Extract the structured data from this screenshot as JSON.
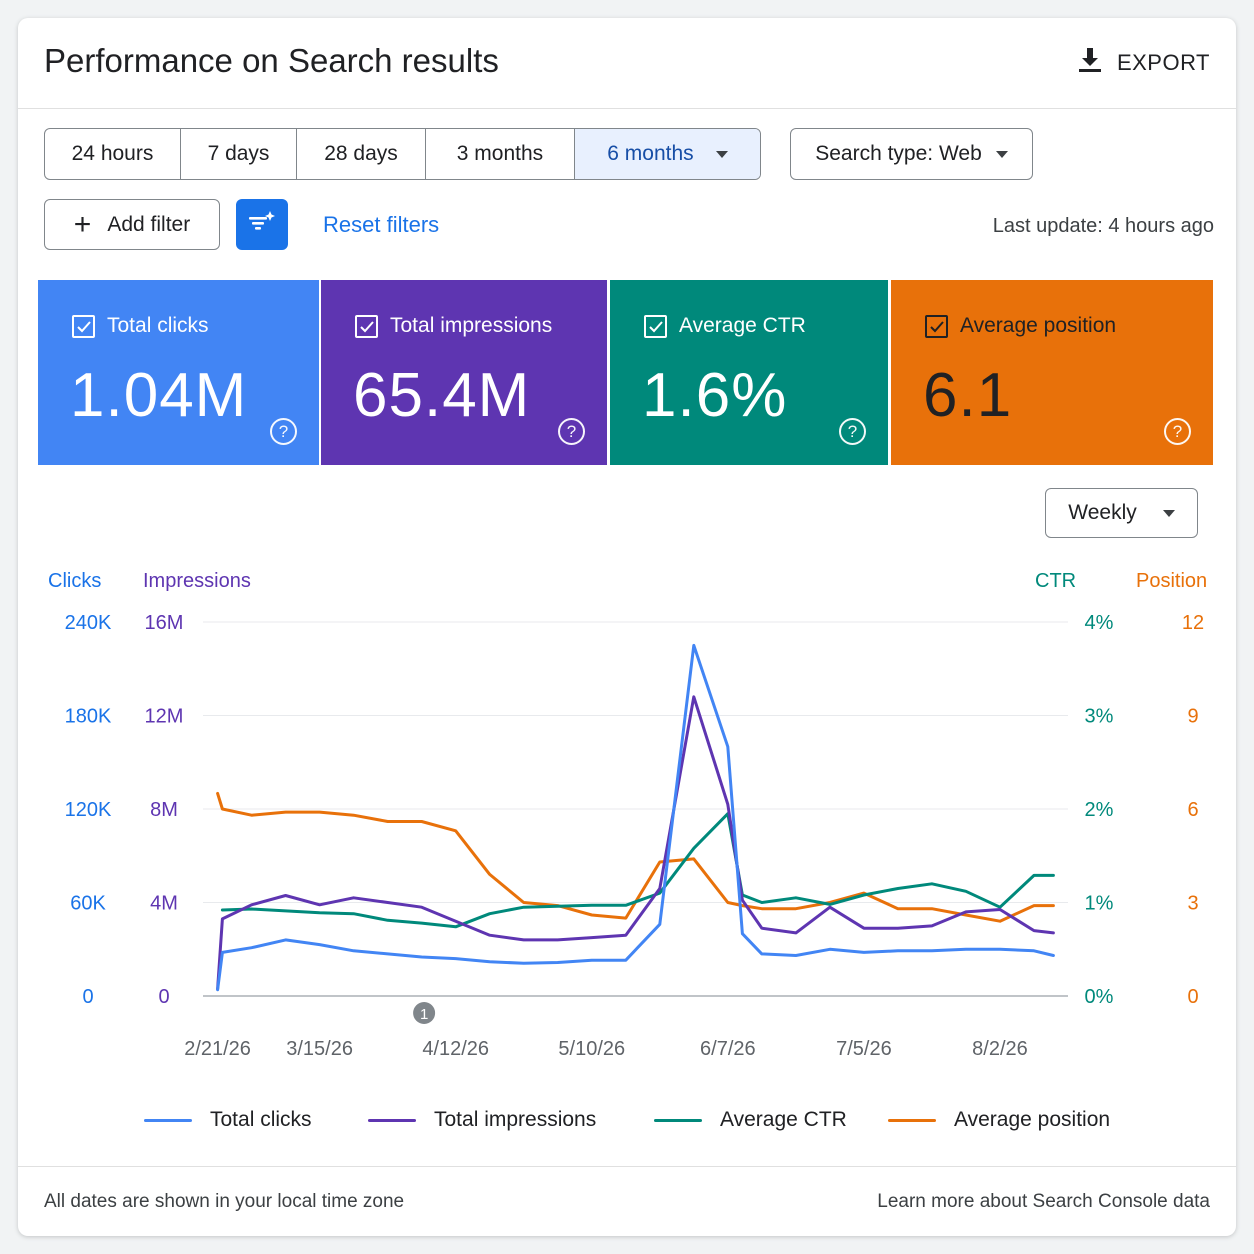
{
  "header": {
    "title": "Performance on Search results",
    "export_label": "EXPORT"
  },
  "date_ranges": [
    {
      "label": "24 hours",
      "selected": false
    },
    {
      "label": "7 days",
      "selected": false
    },
    {
      "label": "28 days",
      "selected": false
    },
    {
      "label": "3 months",
      "selected": false
    },
    {
      "label": "6 months",
      "selected": true
    }
  ],
  "search_type": "Search type: Web",
  "filters": {
    "add_filter_label": "Add filter",
    "reset_label": "Reset filters"
  },
  "last_update": "Last update: 4 hours ago",
  "metrics": [
    {
      "label": "Total clicks",
      "value": "1.04M",
      "checked": true,
      "color": "#4285f4"
    },
    {
      "label": "Total impressions",
      "value": "65.4M",
      "checked": true,
      "color": "#5e35b1"
    },
    {
      "label": "Average CTR",
      "value": "1.6%",
      "checked": true,
      "color": "#00897b"
    },
    {
      "label": "Average position",
      "value": "6.1",
      "checked": true,
      "color": "#e8710a"
    }
  ],
  "granularity": "Weekly",
  "chart_data": {
    "type": "line",
    "axes": {
      "left1": {
        "title": "Clicks",
        "ticks": [
          "0",
          "60K",
          "120K",
          "180K",
          "240K"
        ],
        "color": "#1a73e8"
      },
      "left2": {
        "title": "Impressions",
        "ticks": [
          "0",
          "4M",
          "8M",
          "12M",
          "16M"
        ],
        "color": "#5e35b1"
      },
      "right1": {
        "title": "CTR",
        "ticks": [
          "0%",
          "1%",
          "2%",
          "3%",
          "4%"
        ],
        "color": "#00897b"
      },
      "right2": {
        "title": "Position",
        "ticks": [
          "0",
          "3",
          "6",
          "9",
          "12"
        ],
        "color": "#e8710a"
      }
    },
    "x_labels": [
      "2/21/26",
      "3/15/26",
      "4/12/26",
      "5/10/26",
      "6/7/26",
      "7/5/26",
      "8/2/26"
    ],
    "annotation": "1",
    "series": [
      {
        "name": "Total clicks",
        "color": "#4285f4",
        "max": 240000,
        "x": [
          -7,
          -6,
          0,
          7,
          14,
          21,
          28,
          35,
          42,
          49,
          56,
          63,
          70,
          77,
          84,
          91,
          98,
          101,
          105,
          112,
          119,
          126,
          133,
          140,
          147,
          154,
          161,
          165
        ],
        "values": [
          4000,
          28000,
          31000,
          36000,
          33000,
          29000,
          27000,
          25000,
          24000,
          22000,
          21000,
          21500,
          23000,
          23000,
          46000,
          225000,
          160000,
          40000,
          27000,
          26000,
          30000,
          28000,
          29000,
          29000,
          30000,
          30000,
          29000,
          26000
        ]
      },
      {
        "name": "Total impressions",
        "color": "#5e35b1",
        "max": 16000000,
        "x": [
          -7,
          -6,
          0,
          7,
          14,
          21,
          28,
          35,
          42,
          49,
          56,
          63,
          70,
          77,
          84,
          91,
          98,
          101,
          105,
          112,
          119,
          126,
          133,
          140,
          147,
          154,
          161,
          165
        ],
        "values": [
          300000,
          3300000,
          3900000,
          4300000,
          3900000,
          4200000,
          4000000,
          3800000,
          3200000,
          2600000,
          2400000,
          2400000,
          2500000,
          2600000,
          4600000,
          12800000,
          8200000,
          4100000,
          2900000,
          2700000,
          3800000,
          2900000,
          2900000,
          3000000,
          3600000,
          3700000,
          2800000,
          2700000
        ]
      },
      {
        "name": "Average CTR",
        "color": "#00897b",
        "max": 4,
        "x": [
          -6,
          0,
          7,
          14,
          21,
          28,
          35,
          42,
          49,
          56,
          63,
          70,
          77,
          84,
          91,
          98,
          101,
          105,
          112,
          119,
          126,
          133,
          140,
          147,
          154,
          161,
          165
        ],
        "values": [
          0.92,
          0.93,
          0.91,
          0.89,
          0.88,
          0.81,
          0.78,
          0.74,
          0.88,
          0.95,
          0.96,
          0.97,
          0.97,
          1.1,
          1.58,
          1.95,
          1.08,
          1.0,
          1.05,
          0.98,
          1.08,
          1.15,
          1.2,
          1.12,
          0.95,
          1.29,
          1.29
        ]
      },
      {
        "name": "Average position",
        "color": "#e8710a",
        "max": 12,
        "x": [
          -7,
          -6,
          0,
          7,
          14,
          21,
          28,
          35,
          42,
          49,
          56,
          63,
          70,
          77,
          84,
          91,
          98,
          101,
          105,
          112,
          119,
          126,
          133,
          140,
          147,
          154,
          161,
          165
        ],
        "values": [
          6.5,
          6.0,
          5.8,
          5.9,
          5.9,
          5.8,
          5.6,
          5.6,
          5.3,
          3.9,
          3.0,
          2.9,
          2.6,
          2.5,
          4.3,
          4.4,
          3.0,
          2.9,
          2.8,
          2.8,
          3.0,
          3.3,
          2.8,
          2.8,
          2.6,
          2.4,
          2.9,
          2.9
        ]
      }
    ]
  },
  "footer": {
    "timezone_note": "All dates are shown in your local time zone",
    "learn_more": "Learn more about Search Console data"
  }
}
